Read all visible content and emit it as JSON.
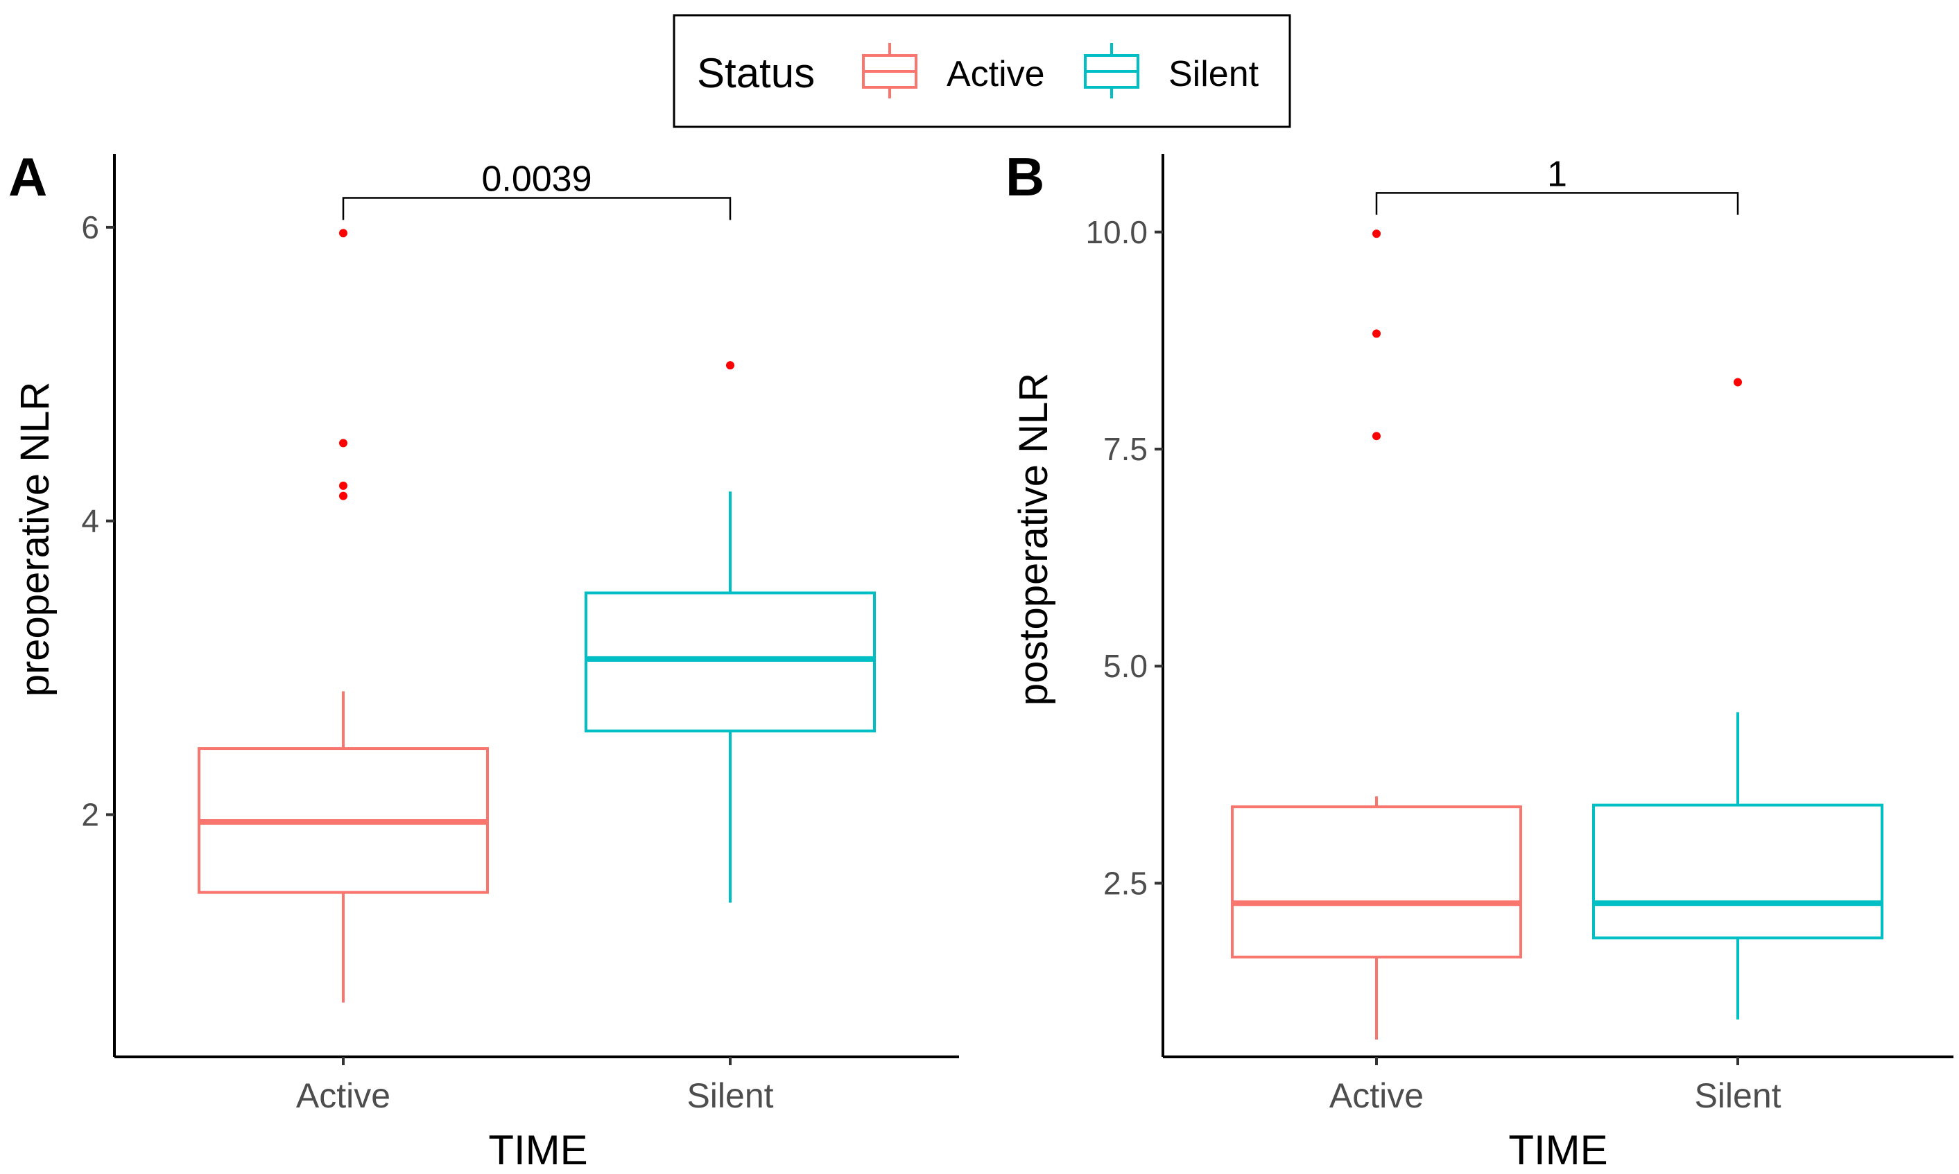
{
  "legend": {
    "title": "Status",
    "items": [
      {
        "label": "Active",
        "color": "#F8766D"
      },
      {
        "label": "Silent",
        "color": "#00BFC4"
      }
    ]
  },
  "outlier_color": "#FF0000",
  "chart_data": [
    {
      "type": "box",
      "panel_label": "A",
      "xlabel": "TIME",
      "ylabel": "preoperative NLR",
      "categories": [
        "Active",
        "Silent"
      ],
      "ylim": [
        0.35,
        6.5
      ],
      "yticks": [
        2,
        4,
        6
      ],
      "ytick_labels": [
        "2",
        "4",
        "6"
      ],
      "comparison": {
        "label": "0.0039",
        "bracket_y": 6.2,
        "tip_y": 6.05
      },
      "boxes": [
        {
          "group": "Active",
          "color": "#F8766D",
          "lower_whisker": 0.72,
          "q1": 1.47,
          "median": 1.95,
          "q3": 2.45,
          "upper_whisker": 2.84,
          "outliers": [
            4.17,
            4.24,
            4.53,
            5.96
          ]
        },
        {
          "group": "Silent",
          "color": "#00BFC4",
          "lower_whisker": 1.4,
          "q1": 2.57,
          "median": 3.06,
          "q3": 3.51,
          "upper_whisker": 4.2,
          "outliers": [
            5.06
          ]
        }
      ]
    },
    {
      "type": "box",
      "panel_label": "B",
      "xlabel": "TIME",
      "ylabel": "postoperative NLR",
      "categories": [
        "Active",
        "Silent"
      ],
      "ylim": [
        0.5,
        10.9
      ],
      "yticks": [
        2.5,
        5.0,
        7.5,
        10.0
      ],
      "ytick_labels": [
        "2.5",
        "5.0",
        "7.5",
        "10.0"
      ],
      "comparison": {
        "label": "1",
        "bracket_y": 10.45,
        "tip_y": 10.2
      },
      "boxes": [
        {
          "group": "Active",
          "color": "#F8766D",
          "lower_whisker": 0.7,
          "q1": 1.65,
          "median": 2.27,
          "q3": 3.38,
          "upper_whisker": 3.5,
          "outliers": [
            7.65,
            8.83,
            9.98
          ]
        },
        {
          "group": "Silent",
          "color": "#00BFC4",
          "lower_whisker": 0.93,
          "q1": 1.87,
          "median": 2.27,
          "q3": 3.4,
          "upper_whisker": 4.47,
          "outliers": [
            8.27
          ]
        }
      ]
    }
  ]
}
